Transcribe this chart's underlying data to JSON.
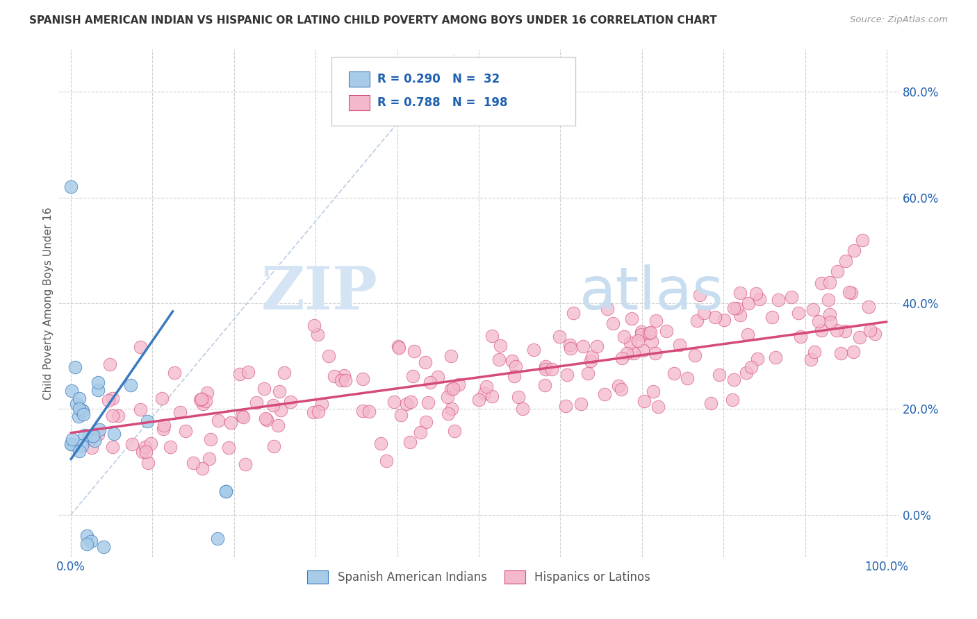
{
  "title": "SPANISH AMERICAN INDIAN VS HISPANIC OR LATINO CHILD POVERTY AMONG BOYS UNDER 16 CORRELATION CHART",
  "source": "Source: ZipAtlas.com",
  "ylabel": "Child Poverty Among Boys Under 16",
  "r1": 0.29,
  "n1": 32,
  "r2": 0.788,
  "n2": 198,
  "color1": "#a8cce8",
  "color2": "#f4b8cc",
  "line_color1": "#3a7abf",
  "line_color2": "#d44a7a",
  "label_color": "#2060b0",
  "watermark_zip": "ZIP",
  "watermark_atlas": "atlas",
  "legend_label1": "Spanish American Indians",
  "legend_label2": "Hispanics or Latinos",
  "xlim": [
    -0.015,
    1.015
  ],
  "ylim": [
    -0.08,
    0.88
  ],
  "ytick_vals": [
    0.0,
    0.2,
    0.4,
    0.6,
    0.8
  ],
  "ytick_labels": [
    "0.0%",
    "20.0%",
    "40.0%",
    "60.0%",
    "80.0%"
  ],
  "xtick_vals": [
    0.0,
    1.0
  ],
  "xtick_labels": [
    "0.0%",
    "100.0%"
  ],
  "blue_line_x": [
    0.0,
    0.125
  ],
  "blue_line_y": [
    0.105,
    0.385
  ],
  "pink_line_x": [
    0.0,
    1.0
  ],
  "pink_line_y": [
    0.155,
    0.365
  ],
  "diag_line_x": [
    0.0,
    0.47
  ],
  "diag_line_y": [
    0.0,
    0.87
  ]
}
